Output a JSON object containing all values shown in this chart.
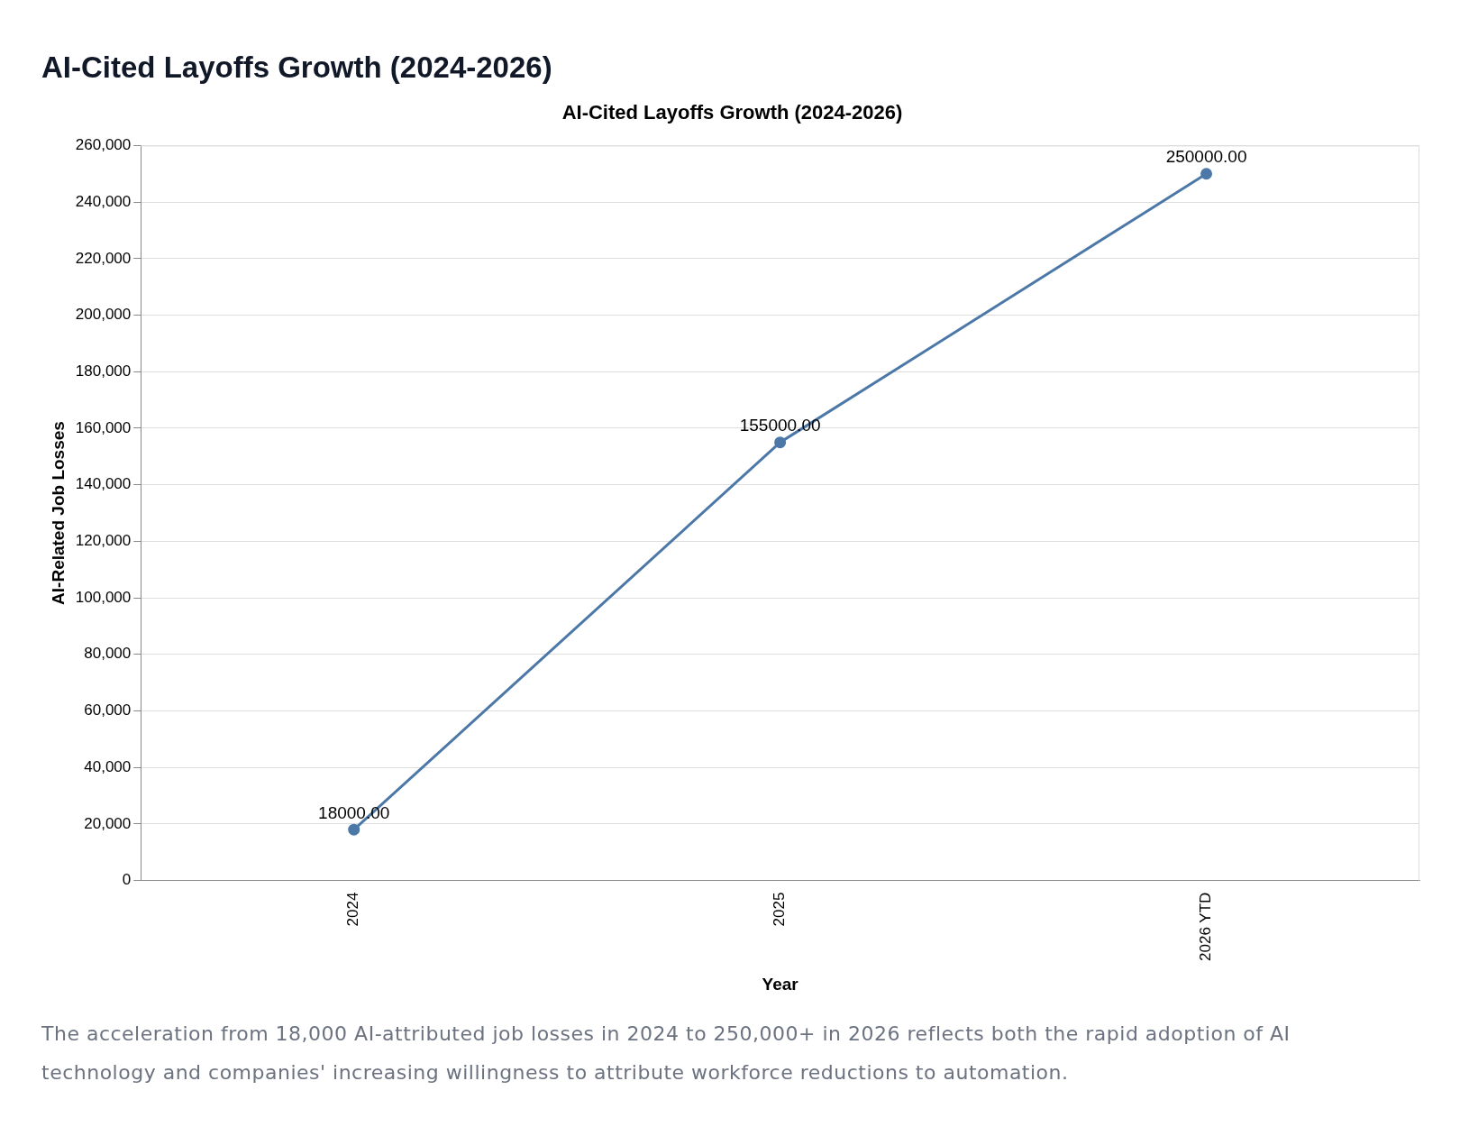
{
  "chart_data": {
    "type": "line",
    "title": "AI-Cited Layoffs Growth (2024-2026)",
    "subtitle": "AI-Cited Layoffs Growth (2024-2026)",
    "xlabel": "Year",
    "ylabel": "AI-Related Job Losses",
    "categories": [
      "2024",
      "2025",
      "2026 YTD"
    ],
    "series": [
      {
        "color": "#4c78a8",
        "values": [
          18000,
          155000,
          250000
        ],
        "value_labels": [
          "18000.00",
          "155000.00",
          "250000.00"
        ]
      }
    ],
    "ylim": [
      0,
      260000
    ],
    "yticks": [
      {
        "value": 0,
        "label": "0"
      },
      {
        "value": 20000,
        "label": "20,000"
      },
      {
        "value": 40000,
        "label": "40,000"
      },
      {
        "value": 60000,
        "label": "60,000"
      },
      {
        "value": 80000,
        "label": "80,000"
      },
      {
        "value": 100000,
        "label": "100,000"
      },
      {
        "value": 120000,
        "label": "120,000"
      },
      {
        "value": 140000,
        "label": "140,000"
      },
      {
        "value": 160000,
        "label": "160,000"
      },
      {
        "value": 180000,
        "label": "180,000"
      },
      {
        "value": 200000,
        "label": "200,000"
      },
      {
        "value": 220000,
        "label": "220,000"
      },
      {
        "value": 240000,
        "label": "240,000"
      },
      {
        "value": 260000,
        "label": "260,000"
      }
    ],
    "grid": "y",
    "legend": false,
    "marker": "circle",
    "line_style": "solid",
    "annotations": [
      "The acceleration from 18,000 AI-attributed job losses in 2024 to 250,000+ in 2026 reflects both the rapid adoption of AI technology and companies' increasing willingness to attribute workforce reductions to automation."
    ]
  }
}
